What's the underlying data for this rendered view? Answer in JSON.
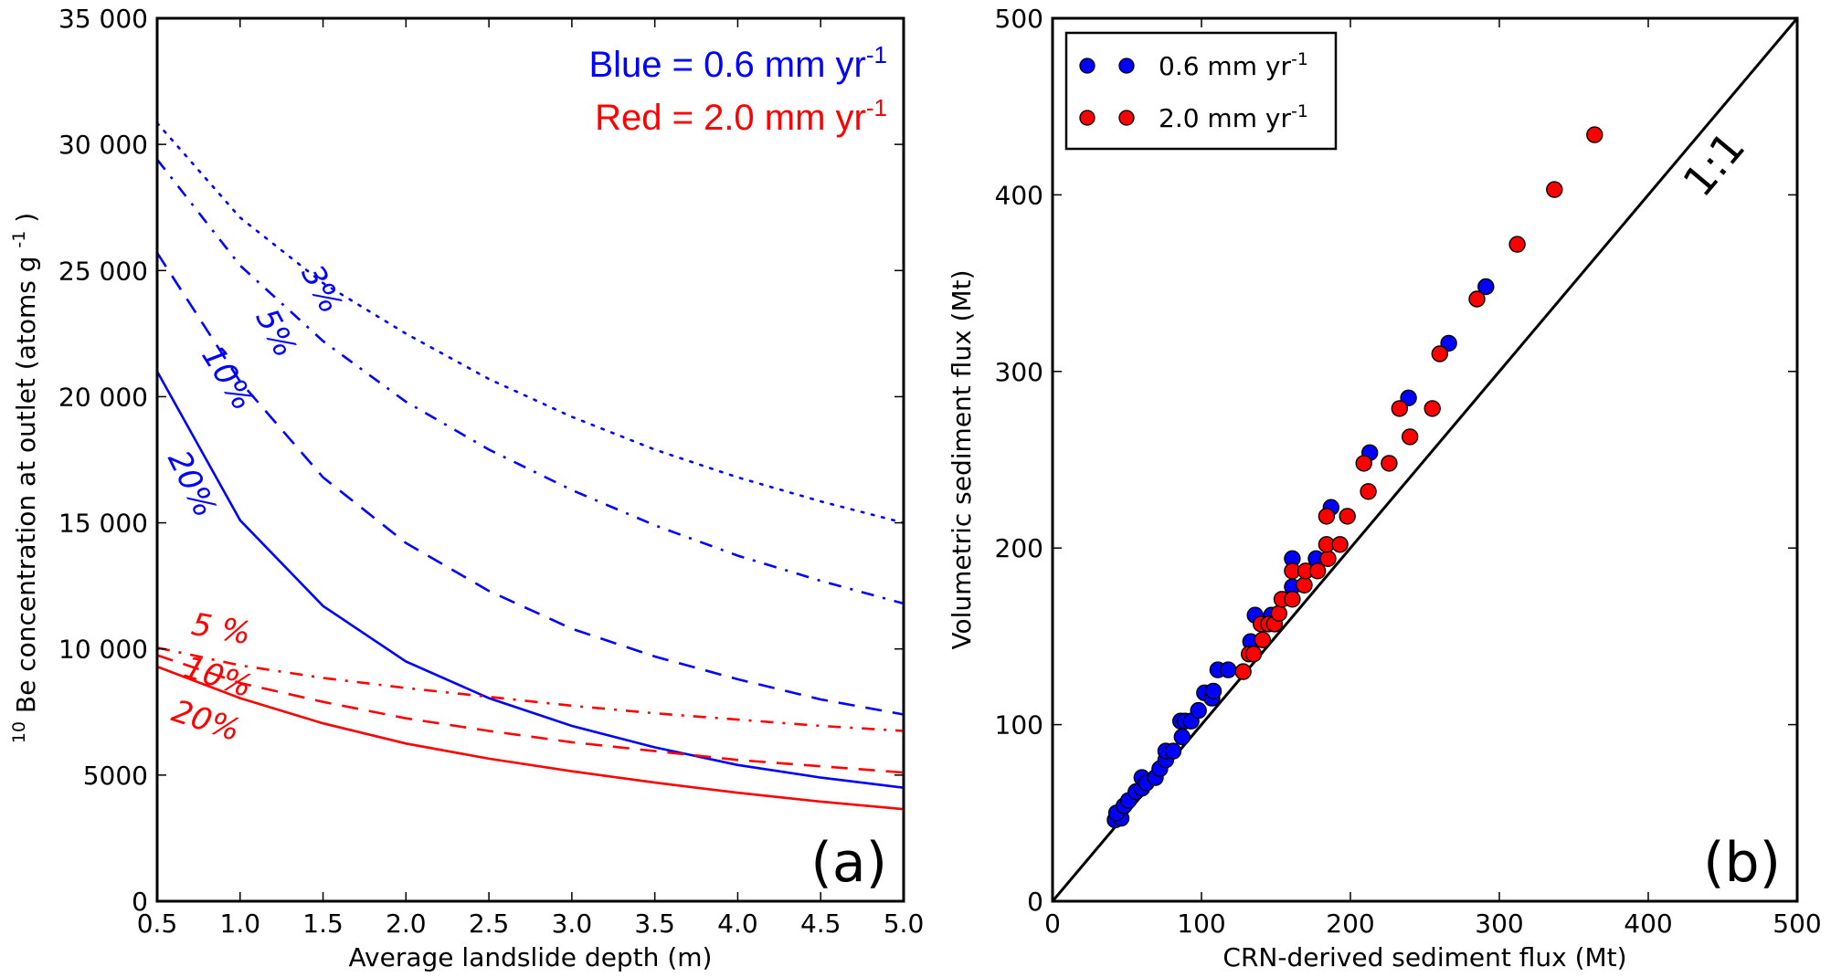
{
  "colors": {
    "blue": "#0000ff",
    "red": "#ff0000",
    "axis": "#000000"
  },
  "chart_data": [
    {
      "type": "line",
      "panel_label": "(a)",
      "xlabel": "Average landslide depth (m)",
      "ylabel_sup": "10",
      "ylabel_main": "Be concentration at outlet (atoms g",
      "ylabel_unit_sup": "-1",
      "ylabel_close": " )",
      "xlim": [
        0.5,
        5.0
      ],
      "ylim": [
        0,
        35000
      ],
      "xticks": [
        0.5,
        1.0,
        1.5,
        2.0,
        2.5,
        3.0,
        3.5,
        4.0,
        4.5,
        5.0
      ],
      "xtick_labels": [
        "0.5",
        "1.0",
        "1.5",
        "2.0",
        "2.5",
        "3.0",
        "3.5",
        "4.0",
        "4.5",
        "5.0"
      ],
      "yticks": [
        0,
        5000,
        10000,
        15000,
        20000,
        25000,
        30000,
        35000
      ],
      "ytick_labels": [
        "0",
        "5000",
        "10 000",
        "15 000",
        "20 000",
        "25 000",
        "30 000",
        "35 000"
      ],
      "grid": false,
      "annotation": {
        "blue_text": "Blue = 0.6 mm yr",
        "red_text": "Red = 2.0 mm yr",
        "sup": "-1"
      },
      "x": [
        0.5,
        1.0,
        1.5,
        2.0,
        2.5,
        3.0,
        3.5,
        4.0,
        4.5,
        5.0
      ],
      "series": [
        {
          "name": "Blue 3%",
          "color": "blue",
          "style": "dotted",
          "label": "3%",
          "values": [
            30850,
            27100,
            24500,
            22500,
            20700,
            19200,
            17900,
            16800,
            15850,
            15000
          ]
        },
        {
          "name": "Blue 5%",
          "color": "blue",
          "style": "dashdot",
          "label": "5%",
          "values": [
            29400,
            25200,
            22200,
            19800,
            17900,
            16300,
            14900,
            13700,
            12700,
            11800
          ]
        },
        {
          "name": "Blue 10%",
          "color": "blue",
          "style": "dashed",
          "label": "10%",
          "values": [
            25700,
            20600,
            16800,
            14200,
            12300,
            10800,
            9700,
            8800,
            8000,
            7400
          ]
        },
        {
          "name": "Blue 20%",
          "color": "blue",
          "style": "solid",
          "label": "20%",
          "values": [
            21000,
            15100,
            11700,
            9500,
            8050,
            6950,
            6100,
            5400,
            4900,
            4500
          ]
        },
        {
          "name": "Red 5%",
          "color": "red",
          "style": "dashdot",
          "label": "5 %",
          "values": [
            10050,
            9350,
            8850,
            8450,
            8100,
            7750,
            7450,
            7200,
            6950,
            6750
          ]
        },
        {
          "name": "Red 10%",
          "color": "red",
          "style": "dashed",
          "label": "10%",
          "values": [
            9750,
            8650,
            7900,
            7250,
            6750,
            6300,
            5950,
            5600,
            5350,
            5100
          ]
        },
        {
          "name": "Red 20%",
          "color": "red",
          "style": "solid",
          "label": "20%",
          "values": [
            9300,
            8050,
            7050,
            6250,
            5650,
            5150,
            4700,
            4300,
            3950,
            3650
          ]
        }
      ]
    },
    {
      "type": "scatter",
      "panel_label": "(b)",
      "xlabel": "CRN-derived sediment flux (Mt)",
      "ylabel": "Volumetric sediment flux (Mt)",
      "xlim": [
        0,
        500
      ],
      "ylim": [
        0,
        500
      ],
      "xticks": [
        0,
        100,
        200,
        300,
        400,
        500
      ],
      "yticks": [
        0,
        100,
        200,
        300,
        400,
        500
      ],
      "tick_labels": [
        "0",
        "100",
        "200",
        "300",
        "400",
        "500"
      ],
      "grid": false,
      "reference_line": {
        "label": "1:1",
        "from": [
          0,
          0
        ],
        "to": [
          500,
          500
        ]
      },
      "legend": {
        "placement": "top-left",
        "entries": [
          {
            "label": "0.6 mm yr",
            "sup": "-1",
            "color": "blue"
          },
          {
            "label": "2.0 mm yr",
            "sup": "-1",
            "color": "red"
          }
        ]
      },
      "series": [
        {
          "name": "0.6 mm yr-1",
          "color": "blue",
          "points": [
            [
              42,
              46
            ],
            [
              46,
              47
            ],
            [
              43,
              50
            ],
            [
              48,
              54
            ],
            [
              51,
              57
            ],
            [
              56,
              62
            ],
            [
              60,
              64
            ],
            [
              60,
              70
            ],
            [
              63,
              67
            ],
            [
              69,
              70
            ],
            [
              72,
              75
            ],
            [
              76,
              80
            ],
            [
              76,
              85
            ],
            [
              81,
              85
            ],
            [
              87,
              93
            ],
            [
              86,
              102
            ],
            [
              89,
              102
            ],
            [
              93,
              102
            ],
            [
              98,
              108
            ],
            [
              102,
              118
            ],
            [
              107,
              115
            ],
            [
              108,
              119
            ],
            [
              111,
              131
            ],
            [
              118,
              131
            ],
            [
              133,
              147
            ],
            [
              136,
              162
            ],
            [
              147,
              162
            ],
            [
              161,
              178
            ],
            [
              161,
              194
            ],
            [
              177,
              194
            ],
            [
              187,
              223
            ],
            [
              213,
              254
            ],
            [
              239,
              285
            ],
            [
              266,
              316
            ],
            [
              291,
              348
            ]
          ]
        },
        {
          "name": "2.0 mm yr-1",
          "color": "red",
          "points": [
            [
              128,
              130
            ],
            [
              132,
              140
            ],
            [
              135,
              140
            ],
            [
              141,
              148
            ],
            [
              140,
              157
            ],
            [
              145,
              157
            ],
            [
              149,
              157
            ],
            [
              152,
              163
            ],
            [
              154,
              171
            ],
            [
              161,
              171
            ],
            [
              169,
              179
            ],
            [
              161,
              187
            ],
            [
              170,
              187
            ],
            [
              178,
              187
            ],
            [
              185,
              194
            ],
            [
              184,
              202
            ],
            [
              193,
              202
            ],
            [
              184,
              218
            ],
            [
              198,
              218
            ],
            [
              212,
              232
            ],
            [
              209,
              248
            ],
            [
              226,
              248
            ],
            [
              240,
              263
            ],
            [
              233,
              279
            ],
            [
              255,
              279
            ],
            [
              260,
              310
            ],
            [
              285,
              341
            ],
            [
              312,
              372
            ],
            [
              337,
              403
            ],
            [
              364,
              434
            ]
          ]
        }
      ]
    }
  ]
}
